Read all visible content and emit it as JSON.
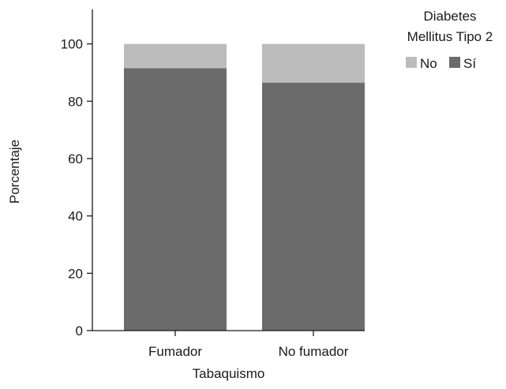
{
  "chart_data": {
    "type": "bar",
    "stacked": true,
    "categories": [
      "Fumador",
      "No fumador"
    ],
    "series": [
      {
        "name": "Sí",
        "color": "#6b6b6b",
        "values": [
          91.5,
          86.5
        ]
      },
      {
        "name": "No",
        "color": "#bcbcbc",
        "values": [
          8.5,
          13.5
        ]
      }
    ],
    "xlabel": "Tabaquismo",
    "ylabel": "Porcentaje",
    "ylim": [
      0,
      112
    ],
    "yticks": [
      0,
      20,
      40,
      60,
      80,
      100
    ],
    "grid": false,
    "legend": {
      "title_lines": [
        "Diabetes",
        "Mellitus Tipo 2"
      ],
      "placement": "top-right",
      "order": [
        "No",
        "Sí"
      ]
    }
  }
}
